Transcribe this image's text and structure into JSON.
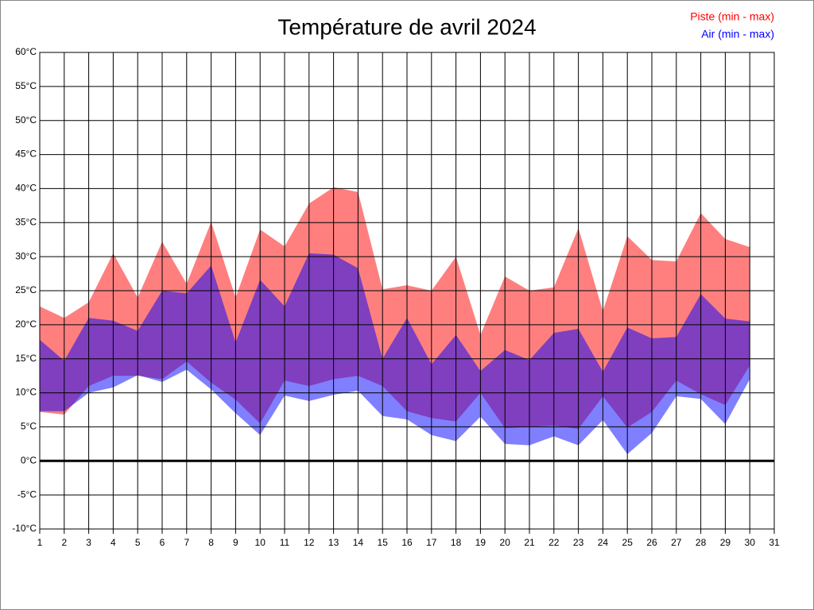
{
  "chart_data": {
    "type": "range-area",
    "title": "Température de avril 2024",
    "x": [
      1,
      2,
      3,
      4,
      5,
      6,
      7,
      8,
      9,
      10,
      11,
      12,
      13,
      14,
      15,
      16,
      17,
      18,
      19,
      20,
      21,
      22,
      23,
      24,
      25,
      26,
      27,
      28,
      29,
      30
    ],
    "series": [
      {
        "name": "Piste (min - max)",
        "color": "#ff0000",
        "max": [
          22.7,
          21,
          23.3,
          30.5,
          24,
          32.2,
          26,
          35.1,
          24,
          34,
          31.5,
          37.8,
          40.2,
          39.5,
          25.2,
          25.8,
          25,
          30,
          18.5,
          27.1,
          25,
          25.5,
          34.2,
          22,
          33,
          29.5,
          29.3,
          36.4,
          32.6,
          31.4
        ],
        "min": [
          7.2,
          6.8,
          11,
          12.5,
          12.5,
          12,
          14.6,
          11.5,
          9,
          5.5,
          11.8,
          11,
          12,
          12.5,
          11,
          7.3,
          6.3,
          5.8,
          10,
          4.8,
          5,
          5.2,
          4.7,
          9.5,
          4.9,
          7.2,
          11.8,
          9.8,
          8.2,
          14
        ]
      },
      {
        "name": "Air (min - max)",
        "color": "#0000ff",
        "max": [
          17.8,
          14.7,
          21,
          20.6,
          19.1,
          25,
          24.6,
          28.7,
          17.4,
          26.6,
          22.7,
          30.5,
          30.3,
          28.3,
          15,
          21,
          14.2,
          18.5,
          13.2,
          16.3,
          14.8,
          18.8,
          19.4,
          13.1,
          19.6,
          18,
          18.2,
          24.5,
          20.9,
          20.5
        ],
        "min": [
          7.3,
          7.3,
          10,
          10.8,
          12.6,
          11.6,
          13.4,
          10.5,
          7,
          3.8,
          9.6,
          8.8,
          9.7,
          10.3,
          6.6,
          6.1,
          3.8,
          2.9,
          6.5,
          2.5,
          2.3,
          3.6,
          2.3,
          6,
          1,
          4.1,
          9.5,
          9.1,
          5.4,
          12
        ]
      }
    ],
    "xlim": [
      1,
      31
    ],
    "xticks": [
      1,
      2,
      3,
      4,
      5,
      6,
      7,
      8,
      9,
      10,
      11,
      12,
      13,
      14,
      15,
      16,
      17,
      18,
      19,
      20,
      21,
      22,
      23,
      24,
      25,
      26,
      27,
      28,
      29,
      30,
      31
    ],
    "ylim": [
      -10,
      60
    ],
    "yticks": [
      {
        "value": -10,
        "label": "-10°C"
      },
      {
        "value": -5,
        "label": "-5°C"
      },
      {
        "value": 0,
        "label": "0°C"
      },
      {
        "value": 5,
        "label": "5°C"
      },
      {
        "value": 10,
        "label": "10°C"
      },
      {
        "value": 15,
        "label": "15°C"
      },
      {
        "value": 20,
        "label": "20°C"
      },
      {
        "value": 25,
        "label": "25°C"
      },
      {
        "value": 30,
        "label": "30°C"
      },
      {
        "value": 35,
        "label": "35°C"
      },
      {
        "value": 40,
        "label": "40°C"
      },
      {
        "value": 45,
        "label": "45°C"
      },
      {
        "value": 50,
        "label": "50°C"
      },
      {
        "value": 55,
        "label": "55°C"
      },
      {
        "value": 60,
        "label": "60°C"
      }
    ],
    "grid": true,
    "legend": "top-right",
    "opacity": 0.5
  }
}
